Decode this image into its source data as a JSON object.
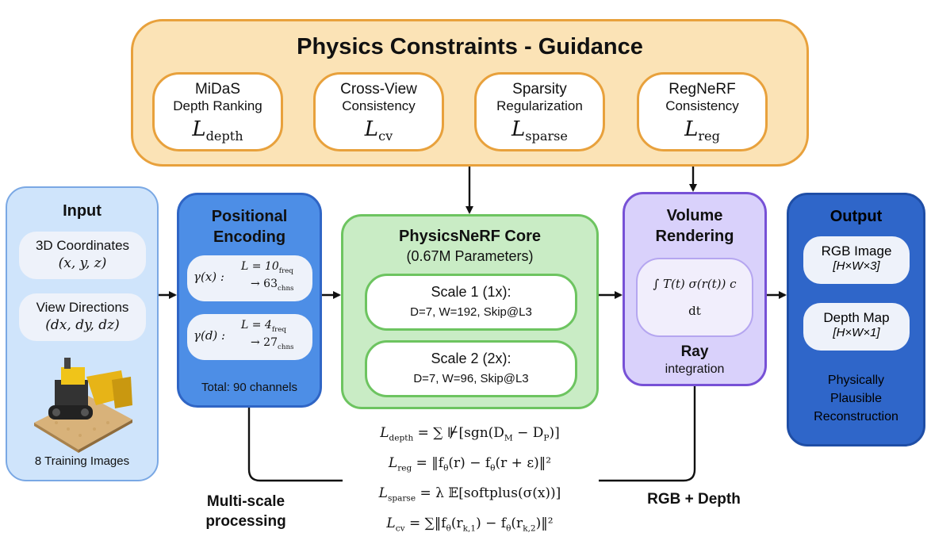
{
  "physics": {
    "title": "Physics Constraints - Guidance",
    "constraints": [
      {
        "line1": "MiDaS",
        "line2": "Depth Ranking",
        "loss_sym": "L",
        "loss_sub": "depth"
      },
      {
        "line1": "Cross-View",
        "line2": "Consistency",
        "loss_sym": "L",
        "loss_sub": "cv"
      },
      {
        "line1": "Sparsity",
        "line2": "Regularization",
        "loss_sym": "L",
        "loss_sub": "sparse"
      },
      {
        "line1": "RegNeRF",
        "line2": "Consistency",
        "loss_sym": "L",
        "loss_sub": "reg"
      }
    ]
  },
  "input": {
    "title": "Input",
    "coords_label": "3D Coordinates",
    "coords_math": "(x, y, z)",
    "dirs_label": "View Directions",
    "dirs_math": "(dx, dy, dz)",
    "images_label": "8 Training Images"
  },
  "encoding": {
    "title_line1": "Positional",
    "title_line2": "Encoding",
    "gx": {
      "fn": "γ(x) :",
      "L": "L = 10",
      "L_sub": "freq",
      "ch": "→ 63",
      "ch_sub": "chns"
    },
    "gd": {
      "fn": "γ(d) :",
      "L": "L = 4",
      "L_sub": "freq",
      "ch": "→ 27",
      "ch_sub": "chns"
    },
    "total": "Total: 90 channels"
  },
  "core": {
    "title": "PhysicsNeRF Core",
    "params": "(0.67M Parameters)",
    "scales": [
      {
        "label": "Scale 1 (1x):",
        "detail": "D=7, W=192, Skip@L3"
      },
      {
        "label": "Scale 2 (2x):",
        "detail": "D=7, W=96, Skip@L3"
      }
    ]
  },
  "rendering": {
    "title_line1": "Volume",
    "title_line2": "Rendering",
    "integral": "∫ T(t) σ(r(t)) c",
    "dt": "dt",
    "ray": "Ray",
    "integration": "integration"
  },
  "output": {
    "title": "Output",
    "rgb_label": "RGB Image",
    "rgb_dims": "[H×W×3]",
    "depth_label": "Depth Map",
    "depth_dims": "[H×W×1]",
    "desc_line1": "Physically",
    "desc_line2": "Plausible",
    "desc_line3": "Reconstruction"
  },
  "equations": {
    "depth": {
      "lhs": "L",
      "sub": "depth",
      "rhs": "= ∑ ⊮[sgn(D",
      "m": "M",
      "mid": " − D",
      "p": "P",
      "end": ")]"
    },
    "reg": {
      "lhs": "L",
      "sub": "reg",
      "rhs": "= ‖f",
      "t1": "θ",
      "mid": "(r) − f",
      "t2": "θ",
      "end": "(r + ε)‖²"
    },
    "sparse": {
      "lhs": "L",
      "sub": "sparse",
      "rhs": "= λ 𝔼[softplus(σ(x))]"
    },
    "cv": {
      "lhs": "L",
      "sub": "cv",
      "rhs": "= ∑‖f",
      "t1": "θ",
      "mid": "(r",
      "k1": "k,1",
      "mid2": ") − f",
      "t2": "θ",
      "mid3": "(r",
      "k2": "k,2",
      "end": ")‖²"
    }
  },
  "captions": {
    "multiscale_line1": "Multi-scale",
    "multiscale_line2": "processing",
    "rgb_depth": "RGB + Depth"
  }
}
